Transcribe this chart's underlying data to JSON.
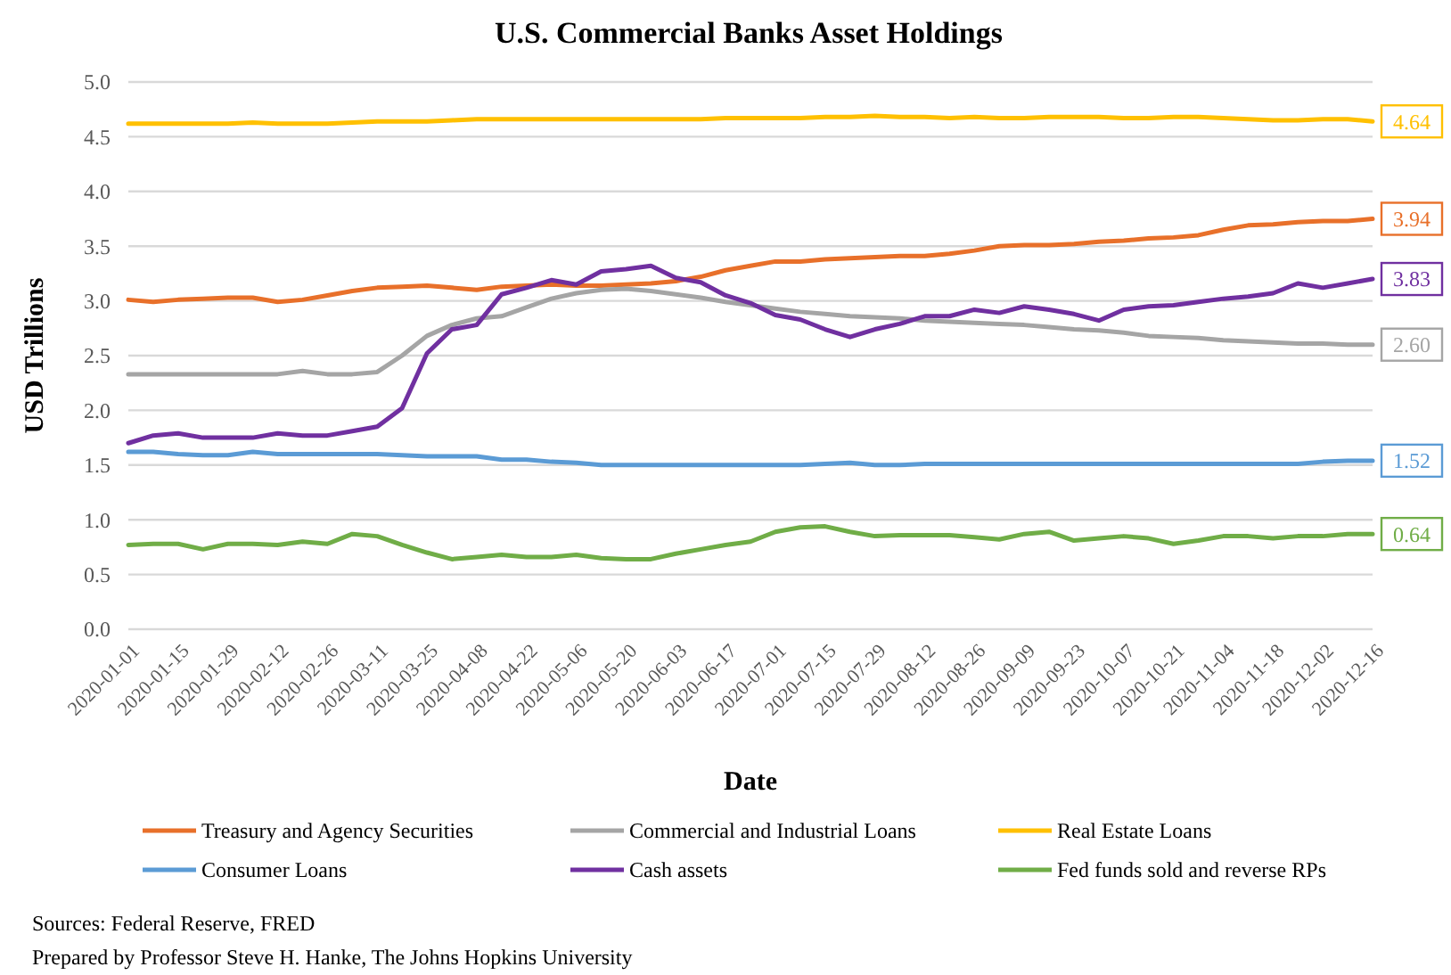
{
  "chart_data": {
    "type": "line",
    "title": "U.S. Commercial Banks Asset Holdings",
    "xlabel": "Date",
    "ylabel": "USD Trillions",
    "x": [
      "2020-01-01",
      "2020-01-08",
      "2020-01-15",
      "2020-01-22",
      "2020-01-29",
      "2020-02-05",
      "2020-02-12",
      "2020-02-19",
      "2020-02-26",
      "2020-03-04",
      "2020-03-11",
      "2020-03-18",
      "2020-03-25",
      "2020-04-01",
      "2020-04-08",
      "2020-04-15",
      "2020-04-22",
      "2020-04-29",
      "2020-05-06",
      "2020-05-13",
      "2020-05-20",
      "2020-05-27",
      "2020-06-03",
      "2020-06-10",
      "2020-06-17",
      "2020-06-24",
      "2020-07-01",
      "2020-07-08",
      "2020-07-15",
      "2020-07-22",
      "2020-07-29",
      "2020-08-05",
      "2020-08-12",
      "2020-08-19",
      "2020-08-26",
      "2020-09-02",
      "2020-09-09",
      "2020-09-16",
      "2020-09-23",
      "2020-09-30",
      "2020-10-07",
      "2020-10-14",
      "2020-10-21",
      "2020-10-28",
      "2020-11-04",
      "2020-11-11",
      "2020-11-18",
      "2020-11-25",
      "2020-12-02",
      "2020-12-09",
      "2020-12-16"
    ],
    "series": [
      {
        "name": "Treasury and Agency Securities",
        "color": "#e8702a",
        "values": [
          3.01,
          2.99,
          3.01,
          3.02,
          3.03,
          3.03,
          2.99,
          3.01,
          3.05,
          3.09,
          3.12,
          3.13,
          3.14,
          3.12,
          3.1,
          3.13,
          3.14,
          3.15,
          3.14,
          3.14,
          3.15,
          3.16,
          3.18,
          3.22,
          3.28,
          3.32,
          3.36,
          3.36,
          3.38,
          3.39,
          3.4,
          3.41,
          3.41,
          3.43,
          3.46,
          3.5,
          3.51,
          3.51,
          3.52,
          3.54,
          3.55,
          3.57,
          3.58,
          3.6,
          3.65,
          3.69,
          3.7,
          3.72,
          3.73,
          3.73,
          3.75
        ]
      },
      {
        "name": "Commercial and Industrial Loans",
        "color": "#a5a5a5",
        "values": [
          2.33,
          2.33,
          2.33,
          2.33,
          2.33,
          2.33,
          2.33,
          2.36,
          2.33,
          2.33,
          2.35,
          2.5,
          2.68,
          2.78,
          2.84,
          2.86,
          2.94,
          3.02,
          3.07,
          3.1,
          3.11,
          3.09,
          3.06,
          3.03,
          2.99,
          2.96,
          2.93,
          2.9,
          2.88,
          2.86,
          2.85,
          2.84,
          2.82,
          2.81,
          2.8,
          2.79,
          2.78,
          2.76,
          2.74,
          2.73,
          2.71,
          2.68,
          2.67,
          2.66,
          2.64,
          2.63,
          2.62,
          2.61,
          2.61,
          2.6,
          2.6
        ]
      },
      {
        "name": "Real Estate Loans",
        "color": "#ffc000",
        "values": [
          4.62,
          4.62,
          4.62,
          4.62,
          4.62,
          4.63,
          4.62,
          4.62,
          4.62,
          4.63,
          4.64,
          4.64,
          4.64,
          4.65,
          4.66,
          4.66,
          4.66,
          4.66,
          4.66,
          4.66,
          4.66,
          4.66,
          4.66,
          4.66,
          4.67,
          4.67,
          4.67,
          4.67,
          4.68,
          4.68,
          4.69,
          4.68,
          4.68,
          4.67,
          4.68,
          4.67,
          4.67,
          4.68,
          4.68,
          4.68,
          4.67,
          4.67,
          4.68,
          4.68,
          4.67,
          4.66,
          4.65,
          4.65,
          4.66,
          4.66,
          4.64
        ]
      },
      {
        "name": "Consumer Loans",
        "color": "#5b9bd5",
        "values": [
          1.62,
          1.62,
          1.6,
          1.59,
          1.59,
          1.62,
          1.6,
          1.6,
          1.6,
          1.6,
          1.6,
          1.59,
          1.58,
          1.58,
          1.58,
          1.55,
          1.55,
          1.53,
          1.52,
          1.5,
          1.5,
          1.5,
          1.5,
          1.5,
          1.5,
          1.5,
          1.5,
          1.5,
          1.51,
          1.52,
          1.5,
          1.5,
          1.51,
          1.51,
          1.51,
          1.51,
          1.51,
          1.51,
          1.51,
          1.51,
          1.51,
          1.51,
          1.51,
          1.51,
          1.51,
          1.51,
          1.51,
          1.51,
          1.53,
          1.54,
          1.54
        ]
      },
      {
        "name": "Cash assets",
        "color": "#7030a0",
        "values": [
          1.7,
          1.77,
          1.79,
          1.75,
          1.75,
          1.75,
          1.79,
          1.77,
          1.77,
          1.81,
          1.85,
          2.02,
          2.52,
          2.74,
          2.78,
          3.06,
          3.12,
          3.19,
          3.15,
          3.27,
          3.29,
          3.32,
          3.21,
          3.17,
          3.05,
          2.98,
          2.87,
          2.83,
          2.74,
          2.67,
          2.74,
          2.79,
          2.86,
          2.86,
          2.92,
          2.89,
          2.95,
          2.92,
          2.88,
          2.82,
          2.92,
          2.95,
          2.96,
          2.99,
          3.02,
          3.04,
          3.07,
          3.16,
          3.12,
          3.16,
          3.2
        ]
      },
      {
        "name": "Fed funds sold and reverse RPs",
        "color": "#70ad47",
        "values": [
          0.77,
          0.78,
          0.78,
          0.73,
          0.78,
          0.78,
          0.77,
          0.8,
          0.78,
          0.87,
          0.85,
          0.77,
          0.7,
          0.64,
          0.66,
          0.68,
          0.66,
          0.66,
          0.68,
          0.65,
          0.64,
          0.64,
          0.69,
          0.73,
          0.77,
          0.8,
          0.89,
          0.93,
          0.94,
          0.89,
          0.85,
          0.86,
          0.86,
          0.86,
          0.84,
          0.82,
          0.87,
          0.89,
          0.81,
          0.83,
          0.85,
          0.83,
          0.78,
          0.81,
          0.85,
          0.85,
          0.83,
          0.85,
          0.85,
          0.87,
          0.87
        ]
      }
    ],
    "xlim": [
      "2020-01-01",
      "2020-12-16"
    ],
    "xticks": [
      "2020-01-01",
      "2020-01-15",
      "2020-01-29",
      "2020-02-12",
      "2020-02-26",
      "2020-03-11",
      "2020-03-25",
      "2020-04-08",
      "2020-04-22",
      "2020-05-06",
      "2020-05-20",
      "2020-06-03",
      "2020-06-17",
      "2020-07-01",
      "2020-07-15",
      "2020-07-29",
      "2020-08-12",
      "2020-08-26",
      "2020-09-09",
      "2020-09-23",
      "2020-10-07",
      "2020-10-21",
      "2020-11-04",
      "2020-11-18",
      "2020-12-02",
      "2020-12-16"
    ],
    "ylim": [
      0,
      5
    ],
    "yticks": [
      {
        "value": 0,
        "label": "0.0"
      },
      0.5,
      {
        "value": 1,
        "label": "1.0"
      },
      1.5,
      {
        "value": 2,
        "label": "2.0"
      },
      2.5,
      {
        "value": 3,
        "label": "3.0"
      },
      3.5,
      {
        "value": 4,
        "label": "4.0"
      },
      4.5,
      {
        "value": 5,
        "label": "5.0"
      }
    ],
    "grid": "y",
    "legend": "bottom",
    "annotations": [
      {
        "text": "4.64",
        "x": "2020-12-16",
        "y": 4.64
      },
      {
        "text": "3.94",
        "x": "2020-12-16",
        "y": 3.75
      },
      {
        "text": "3.83",
        "x": "2020-12-16",
        "y": 3.2
      },
      {
        "text": "2.60",
        "x": "2020-12-16",
        "y": 2.6
      },
      {
        "text": "1.52",
        "x": "2020-12-16",
        "y": 1.54
      },
      {
        "text": "0.64",
        "x": "2020-12-16",
        "y": 0.87
      },
      "Sources: Federal Reserve, FRED",
      "Prepared by Professor Steve H. Hanke, The Johns Hopkins University"
    ]
  }
}
